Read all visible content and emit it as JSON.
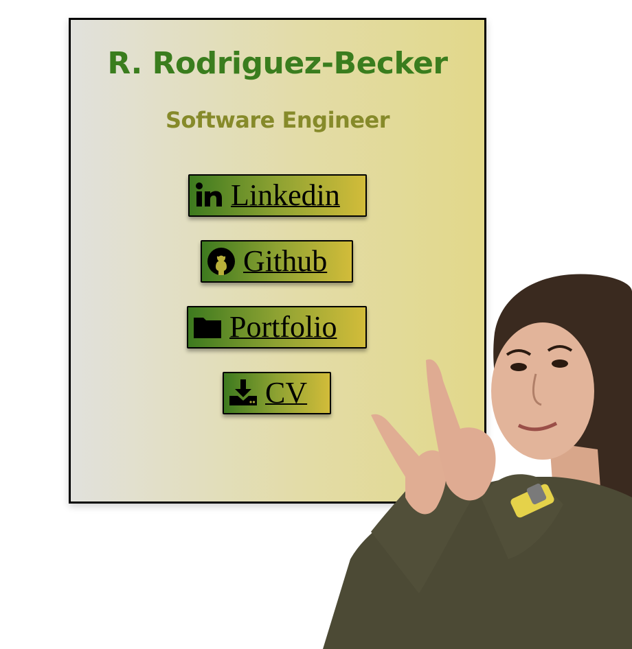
{
  "profile": {
    "name": "R. Rodriguez-Becker",
    "title": "Software Engineer"
  },
  "links": [
    {
      "label": "Linkedin",
      "icon": "linkedin-icon"
    },
    {
      "label": "Github",
      "icon": "github-icon"
    },
    {
      "label": "Portfolio",
      "icon": "folder-icon"
    },
    {
      "label": "CV",
      "icon": "download-icon"
    }
  ],
  "colors": {
    "name_text": "#3a7d1e",
    "title_text": "#868a2a",
    "button_gradient_start": "#3d7a1f",
    "button_gradient_end": "#d2bc3a",
    "card_border": "#000000"
  }
}
